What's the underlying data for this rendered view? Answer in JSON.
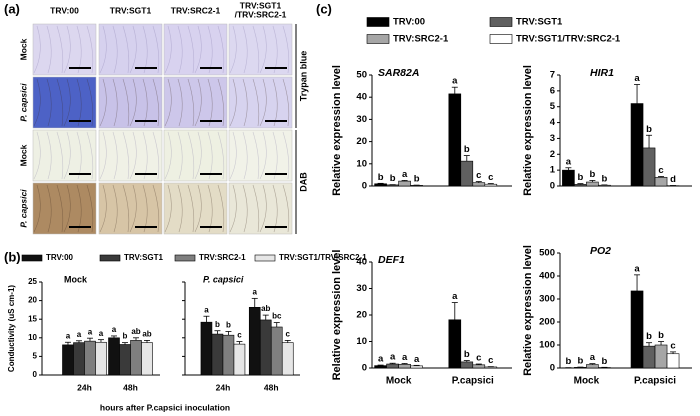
{
  "panel_labels": [
    "(a)",
    "(b)",
    "(c)"
  ],
  "image_grid": {
    "columns": [
      [
        "TRV:00"
      ],
      [
        "TRV:SGT1"
      ],
      [
        "TRV:SRC2-1"
      ],
      [
        "TRV:SGT1",
        "/TRV:SRC2-1"
      ]
    ],
    "rows": [
      "Mock",
      "P. capsici",
      "Mock",
      "P. capsici"
    ],
    "stains": [
      "Trypan blue",
      "DAB"
    ]
  },
  "chart_data": [
    {
      "type": "bar",
      "title": "Mock",
      "ylabel": "Conductivity (uS cm-1)",
      "xlabel": "hours after P.capsici inoculation",
      "categories": [
        "24h",
        "48h"
      ],
      "ylim": [
        0,
        25
      ],
      "yticks": [
        0,
        5,
        10,
        15,
        20,
        25
      ],
      "series": [
        {
          "name": "TRV:00",
          "color": "#111111",
          "values": [
            8.1,
            10.0
          ],
          "errors": [
            0.7,
            0.5
          ],
          "letters": [
            "a",
            "a"
          ]
        },
        {
          "name": "TRV:SGT1",
          "color": "#3a3a3a",
          "values": [
            8.7,
            8.2
          ],
          "errors": [
            0.5,
            0.5
          ],
          "letters": [
            "a",
            "b"
          ]
        },
        {
          "name": "TRV:SRC2-1",
          "color": "#7f7f7f",
          "values": [
            9.1,
            9.3
          ],
          "errors": [
            0.8,
            0.7
          ],
          "letters": [
            "a",
            "ab"
          ]
        },
        {
          "name": "TRV:SGT1/TRV:SRC2-1",
          "color": "#e6e6e6",
          "values": [
            8.8,
            8.7
          ],
          "errors": [
            0.7,
            0.6
          ],
          "letters": [
            "a",
            "ab"
          ]
        }
      ]
    },
    {
      "type": "bar",
      "title": "P. capsici",
      "categories": [
        "24h",
        "48h"
      ],
      "ylim": [
        0,
        25
      ],
      "yticks": [
        0,
        5,
        10,
        15,
        20,
        25
      ],
      "series": [
        {
          "color": "#111111",
          "values": [
            14.2,
            18.2
          ],
          "errors": [
            1.6,
            2.4
          ],
          "letters": [
            "a",
            "a"
          ]
        },
        {
          "color": "#3a3a3a",
          "values": [
            11.0,
            14.8
          ],
          "errors": [
            0.9,
            1.3
          ],
          "letters": [
            "b",
            "ab"
          ]
        },
        {
          "color": "#7f7f7f",
          "values": [
            10.7,
            12.9
          ],
          "errors": [
            1.0,
            1.2
          ],
          "letters": [
            "b",
            "bc"
          ]
        },
        {
          "color": "#e6e6e6",
          "values": [
            8.3,
            8.7
          ],
          "errors": [
            0.7,
            0.6
          ],
          "letters": [
            "c",
            "c"
          ]
        }
      ]
    },
    {
      "type": "bar",
      "title": "SAR82A",
      "ylabel": "Relative expression level",
      "ylim": [
        0,
        50
      ],
      "yticks": [
        0,
        10,
        20,
        30,
        40,
        50
      ],
      "series": [
        {
          "name": "TRV:00",
          "color": "#000000",
          "values": [
            1.0,
            41.5
          ],
          "errors": [
            0.2,
            3.0
          ],
          "letters": [
            "b",
            "a"
          ]
        },
        {
          "name": "TRV:SGT1",
          "color": "#606060",
          "values": [
            0.5,
            11.2
          ],
          "errors": [
            0.1,
            2.5
          ],
          "letters": [
            "b",
            "b"
          ]
        },
        {
          "name": "TRV:SRC2-1",
          "color": "#a6a6a6",
          "values": [
            2.2,
            1.5
          ],
          "errors": [
            0.3,
            0.5
          ],
          "letters": [
            "a",
            "c"
          ]
        },
        {
          "name": "TRV:SGT1/TRV:SRC2-1",
          "color": "#ffffff",
          "values": [
            0.3,
            0.8
          ],
          "errors": [
            0.1,
            0.3
          ],
          "letters": [
            "b",
            "c"
          ]
        }
      ]
    },
    {
      "type": "bar",
      "title": "HIR1",
      "ylabel": "Relative expression level",
      "ylim": [
        0,
        7
      ],
      "yticks": [
        0,
        1,
        2,
        3,
        4,
        5,
        6,
        7
      ],
      "series": [
        {
          "color": "#000000",
          "values": [
            1.0,
            5.2
          ],
          "errors": [
            0.15,
            1.2
          ],
          "letters": [
            "a",
            "a"
          ]
        },
        {
          "color": "#606060",
          "values": [
            0.1,
            2.4
          ],
          "errors": [
            0.05,
            0.8
          ],
          "letters": [
            "b",
            "b"
          ]
        },
        {
          "color": "#a6a6a6",
          "values": [
            0.25,
            0.55
          ],
          "errors": [
            0.1,
            0.05
          ],
          "letters": [
            "b",
            "c"
          ]
        },
        {
          "color": "#ffffff",
          "values": [
            0.05,
            0.02
          ],
          "errors": [
            0.02,
            0.01
          ],
          "letters": [
            "b",
            "d"
          ]
        }
      ]
    },
    {
      "type": "bar",
      "title": "DEF1",
      "ylabel": "Relative expression level",
      "categories": [
        "Mock",
        "P.capsici"
      ],
      "ylim": [
        0,
        40
      ],
      "yticks": [
        0,
        10,
        20,
        30,
        40
      ],
      "series": [
        {
          "color": "#000000",
          "values": [
            0.9,
            18.2
          ],
          "errors": [
            0.2,
            6.5
          ],
          "letters": [
            "a",
            "a"
          ]
        },
        {
          "color": "#606060",
          "values": [
            1.5,
            2.3
          ],
          "errors": [
            0.3,
            0.5
          ],
          "letters": [
            "a",
            "b"
          ]
        },
        {
          "color": "#a6a6a6",
          "values": [
            1.4,
            1.2
          ],
          "errors": [
            0.3,
            0.3
          ],
          "letters": [
            "a",
            "c"
          ]
        },
        {
          "color": "#ffffff",
          "values": [
            0.8,
            0.4
          ],
          "errors": [
            0.2,
            0.1
          ],
          "letters": [
            "a",
            "c"
          ]
        }
      ]
    },
    {
      "type": "bar",
      "title": "PO2",
      "ylabel": "Relative expression level",
      "categories": [
        "Mock",
        "P.capsici"
      ],
      "ylim": [
        0,
        500
      ],
      "yticks": [
        0,
        100,
        200,
        300,
        400,
        500
      ],
      "series": [
        {
          "color": "#000000",
          "values": [
            1,
            335
          ],
          "errors": [
            0.5,
            70
          ],
          "letters": [
            "b",
            "a"
          ]
        },
        {
          "color": "#606060",
          "values": [
            3,
            95
          ],
          "errors": [
            1,
            15
          ],
          "letters": [
            "b",
            "b"
          ]
        },
        {
          "color": "#a6a6a6",
          "values": [
            15,
            100
          ],
          "errors": [
            4,
            15
          ],
          "letters": [
            "a",
            "b"
          ]
        },
        {
          "color": "#ffffff",
          "values": [
            2,
            62
          ],
          "errors": [
            1,
            8
          ],
          "letters": [
            "b",
            "c"
          ]
        }
      ]
    }
  ]
}
